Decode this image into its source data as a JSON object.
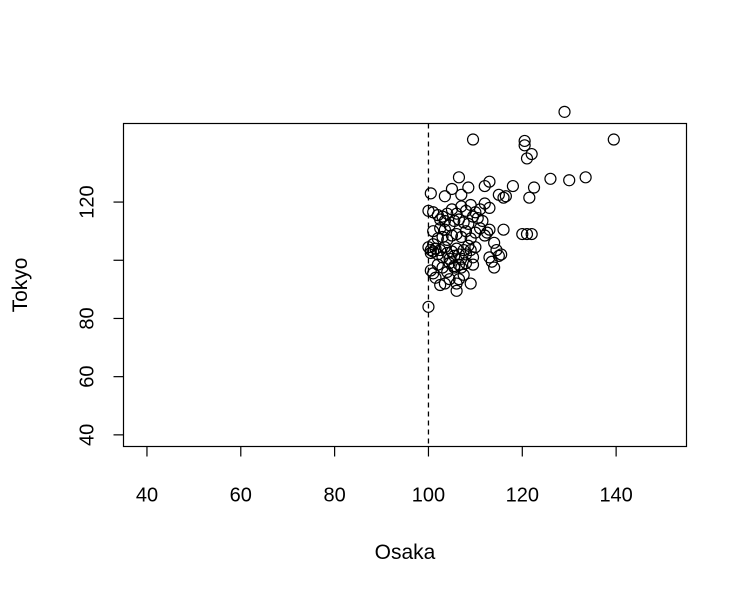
{
  "chart_data": {
    "type": "scatter",
    "title": "",
    "xlabel": "Osaka",
    "ylabel": "Tokyo",
    "xlim": [
      35,
      155
    ],
    "ylim": [
      36,
      147
    ],
    "x_ticks": [
      40,
      60,
      80,
      100,
      120,
      140
    ],
    "y_ticks": [
      40,
      60,
      80,
      100,
      120
    ],
    "y_tick_labels": [
      "40",
      "60",
      "80",
      "",
      "120"
    ],
    "reference_line": {
      "orientation": "vertical",
      "x": 100,
      "style": "dashed"
    },
    "grid": false,
    "marker": "open-circle",
    "points": [
      [
        100.0,
        84.0
      ],
      [
        100.5,
        96.5
      ],
      [
        101.0,
        95.5
      ],
      [
        101.5,
        94.0
      ],
      [
        102.5,
        91.5
      ],
      [
        103.5,
        92.0
      ],
      [
        104.0,
        96.0
      ],
      [
        104.5,
        93.5
      ],
      [
        105.5,
        97.5
      ],
      [
        106.0,
        89.5
      ],
      [
        106.5,
        93.5
      ],
      [
        106.0,
        92.0
      ],
      [
        107.5,
        95.0
      ],
      [
        109.0,
        92.0
      ],
      [
        102.0,
        98.5
      ],
      [
        103.0,
        97.5
      ],
      [
        104.5,
        99.0
      ],
      [
        105.5,
        98.0
      ],
      [
        106.5,
        98.5
      ],
      [
        107.0,
        97.5
      ],
      [
        108.0,
        99.0
      ],
      [
        109.5,
        98.5
      ],
      [
        100.0,
        104.5
      ],
      [
        100.5,
        103.5
      ],
      [
        101.0,
        103.0
      ],
      [
        100.5,
        102.5
      ],
      [
        101.5,
        104.0
      ],
      [
        101.0,
        105.5
      ],
      [
        102.0,
        102.0
      ],
      [
        102.5,
        103.5
      ],
      [
        103.0,
        101.0
      ],
      [
        103.5,
        104.5
      ],
      [
        104.0,
        102.5
      ],
      [
        104.5,
        100.5
      ],
      [
        105.0,
        103.0
      ],
      [
        105.5,
        101.5
      ],
      [
        106.0,
        104.0
      ],
      [
        106.5,
        102.0
      ],
      [
        107.0,
        100.5
      ],
      [
        107.5,
        103.5
      ],
      [
        108.0,
        102.0
      ],
      [
        108.5,
        105.0
      ],
      [
        109.0,
        103.5
      ],
      [
        109.5,
        101.0
      ],
      [
        110.0,
        104.5
      ],
      [
        102.0,
        107.5
      ],
      [
        103.0,
        108.0
      ],
      [
        104.0,
        107.0
      ],
      [
        105.0,
        108.5
      ],
      [
        106.0,
        109.0
      ],
      [
        107.0,
        108.0
      ],
      [
        108.0,
        110.0
      ],
      [
        109.0,
        107.5
      ],
      [
        110.0,
        109.5
      ],
      [
        111.0,
        111.0
      ],
      [
        112.0,
        108.5
      ],
      [
        112.5,
        109.5
      ],
      [
        113.0,
        110.5
      ],
      [
        101.0,
        110.0
      ],
      [
        102.5,
        111.0
      ],
      [
        103.5,
        110.5
      ],
      [
        104.5,
        112.0
      ],
      [
        105.5,
        113.5
      ],
      [
        106.5,
        114.0
      ],
      [
        107.5,
        113.0
      ],
      [
        108.5,
        112.5
      ],
      [
        109.5,
        115.0
      ],
      [
        110.5,
        114.5
      ],
      [
        111.5,
        113.5
      ],
      [
        100.0,
        117.0
      ],
      [
        101.0,
        116.5
      ],
      [
        102.0,
        115.5
      ],
      [
        102.5,
        114.0
      ],
      [
        103.0,
        115.0
      ],
      [
        103.5,
        113.5
      ],
      [
        104.0,
        116.0
      ],
      [
        105.0,
        117.5
      ],
      [
        106.0,
        116.0
      ],
      [
        107.0,
        118.5
      ],
      [
        108.0,
        117.0
      ],
      [
        109.0,
        119.0
      ],
      [
        110.0,
        116.5
      ],
      [
        111.0,
        117.5
      ],
      [
        112.0,
        119.5
      ],
      [
        113.0,
        118.0
      ],
      [
        100.5,
        123.0
      ],
      [
        103.5,
        122.0
      ],
      [
        105.0,
        124.5
      ],
      [
        107.0,
        122.5
      ],
      [
        108.5,
        125.0
      ],
      [
        112.0,
        125.5
      ],
      [
        113.0,
        127.0
      ],
      [
        106.5,
        128.5
      ],
      [
        115.0,
        122.5
      ],
      [
        116.0,
        121.5
      ],
      [
        116.5,
        122.0
      ],
      [
        118.0,
        125.5
      ],
      [
        121.5,
        121.5
      ],
      [
        122.5,
        125.0
      ],
      [
        126.0,
        128.0
      ],
      [
        130.0,
        127.5
      ],
      [
        133.5,
        128.5
      ],
      [
        114.0,
        106.0
      ],
      [
        114.5,
        103.5
      ],
      [
        115.0,
        101.5
      ],
      [
        113.0,
        101.0
      ],
      [
        113.5,
        99.5
      ],
      [
        114.0,
        97.5
      ],
      [
        115.5,
        102.0
      ],
      [
        116.0,
        110.5
      ],
      [
        120.0,
        109.0
      ],
      [
        121.0,
        109.0
      ],
      [
        122.0,
        109.0
      ],
      [
        109.5,
        141.5
      ],
      [
        120.5,
        141.0
      ],
      [
        120.5,
        139.5
      ],
      [
        121.0,
        135.0
      ],
      [
        122.0,
        136.5
      ],
      [
        129.0,
        151.0
      ],
      [
        139.5,
        141.5
      ]
    ]
  }
}
